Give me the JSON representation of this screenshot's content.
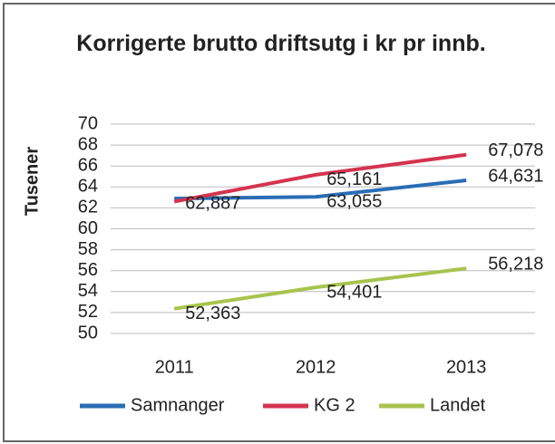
{
  "chart_data": {
    "type": "line",
    "title": "Korrigerte brutto driftsutg i kr pr innb.",
    "y_label": "Tusener",
    "categories": [
      "2011",
      "2012",
      "2013"
    ],
    "series": [
      {
        "name": "Samnanger",
        "color": "#2a6db5",
        "values": [
          62.887,
          63.055,
          64.631
        ],
        "value_labels": [
          "62,887",
          "63,055",
          "64,631"
        ]
      },
      {
        "name": "KG 2",
        "color": "#d4344f",
        "values": [
          62.6,
          65.161,
          67.078
        ],
        "value_labels": [
          null,
          "65,161",
          "67,078"
        ]
      },
      {
        "name": "Landet",
        "color": "#a8c34e",
        "values": [
          52.363,
          54.401,
          56.218
        ],
        "value_labels": [
          "52,363",
          "54,401",
          "56,218"
        ]
      }
    ],
    "ylim": [
      50,
      70
    ],
    "yticks": [
      50,
      52,
      54,
      56,
      58,
      60,
      62,
      64,
      66,
      68,
      70
    ],
    "grid": true,
    "legend": "bottom"
  }
}
